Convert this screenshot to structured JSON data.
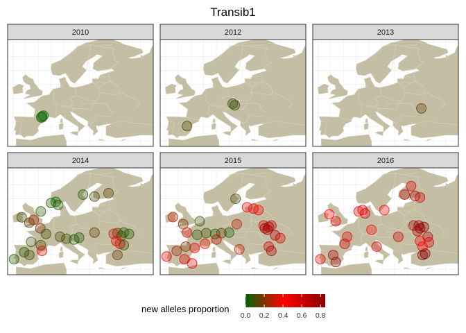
{
  "title": "Transib1",
  "chart_data": {
    "type": "scatter",
    "title": "Transib1",
    "description_axes": "longitude / latitude map of Europe, faceted by year",
    "xlim": [
      -12,
      45
    ],
    "ylim": [
      33,
      71
    ],
    "grid": true,
    "facets": [
      {
        "label": "2010",
        "points": [
          {
            "lon": 1.5,
            "lat": 43.6,
            "value": 0.0
          },
          {
            "lon": 2.0,
            "lat": 43.9,
            "value": 0.0
          },
          {
            "lon": 1.2,
            "lat": 43.3,
            "value": 0.02
          }
        ]
      },
      {
        "label": "2012",
        "points": [
          {
            "lon": 16.4,
            "lat": 48.2,
            "value": 0.1
          },
          {
            "lon": 17.2,
            "lat": 47.6,
            "value": 0.08
          },
          {
            "lon": -1.5,
            "lat": 40.2,
            "value": 0.1
          }
        ]
      },
      {
        "label": "2013",
        "points": [
          {
            "lon": 30.5,
            "lat": 46.5,
            "value": 0.15
          }
        ]
      },
      {
        "label": "2014",
        "points": [
          {
            "lon": -6.5,
            "lat": 53.4,
            "value": 0.1
          },
          {
            "lon": -3.5,
            "lat": 51.5,
            "value": 0.15
          },
          {
            "lon": -1.8,
            "lat": 52.5,
            "value": 0.25
          },
          {
            "lon": 1.0,
            "lat": 55.5,
            "value": 0.05
          },
          {
            "lon": 5.0,
            "lat": 58.5,
            "value": 0.05
          },
          {
            "lon": 6.8,
            "lat": 58.9,
            "value": 0.0
          },
          {
            "lon": 7.8,
            "lat": 57.8,
            "value": 0.05
          },
          {
            "lon": 17.5,
            "lat": 61.5,
            "value": 0.05
          },
          {
            "lon": 22.0,
            "lat": 60.8,
            "value": 0.1
          },
          {
            "lon": 27.5,
            "lat": 62.0,
            "value": 0.15
          },
          {
            "lon": 0.8,
            "lat": 49.5,
            "value": 0.2
          },
          {
            "lon": 3.0,
            "lat": 47.5,
            "value": 0.1
          },
          {
            "lon": 1.0,
            "lat": 43.5,
            "value": 0.1
          },
          {
            "lon": -2.8,
            "lat": 44.7,
            "value": 0.1
          },
          {
            "lon": -5.5,
            "lat": 41.0,
            "value": 0.05
          },
          {
            "lon": -3.5,
            "lat": 40.0,
            "value": 0.1
          },
          {
            "lon": 1.5,
            "lat": 41.5,
            "value": 0.35
          },
          {
            "lon": -9.5,
            "lat": 38.5,
            "value": 0.05
          },
          {
            "lon": 8.5,
            "lat": 46.5,
            "value": 0.1
          },
          {
            "lon": 11.0,
            "lat": 45.8,
            "value": 0.1
          },
          {
            "lon": 14.0,
            "lat": 45.5,
            "value": 0.05
          },
          {
            "lon": 16.0,
            "lat": 46.2,
            "value": 0.05
          },
          {
            "lon": 22.0,
            "lat": 48.0,
            "value": 0.15
          },
          {
            "lon": 29.5,
            "lat": 47.5,
            "value": 0.3
          },
          {
            "lon": 31.0,
            "lat": 47.8,
            "value": 0.2
          },
          {
            "lon": 32.5,
            "lat": 46.8,
            "value": 0.1
          },
          {
            "lon": 33.5,
            "lat": 48.0,
            "value": 0.05
          },
          {
            "lon": 35.5,
            "lat": 47.5,
            "value": 0.05
          },
          {
            "lon": 30.5,
            "lat": 45.0,
            "value": 0.35
          },
          {
            "lon": 32.0,
            "lat": 44.0,
            "value": 0.5
          },
          {
            "lon": 33.5,
            "lat": 43.5,
            "value": 0.1
          },
          {
            "lon": 31.0,
            "lat": 40.0,
            "value": 0.15
          }
        ]
      },
      {
        "label": "2015",
        "points": [
          {
            "lon": -7.0,
            "lat": 53.5,
            "value": 0.3
          },
          {
            "lon": -3.0,
            "lat": 51.0,
            "value": 0.2
          },
          {
            "lon": 3.5,
            "lat": 52.0,
            "value": 0.1
          },
          {
            "lon": -1.5,
            "lat": 48.0,
            "value": 0.35
          },
          {
            "lon": 2.5,
            "lat": 47.2,
            "value": 0.05
          },
          {
            "lon": 6.0,
            "lat": 47.8,
            "value": 0.1
          },
          {
            "lon": 9.5,
            "lat": 47.5,
            "value": 0.05
          },
          {
            "lon": 12.0,
            "lat": 47.8,
            "value": 0.15
          },
          {
            "lon": 15.0,
            "lat": 48.0,
            "value": 0.05
          },
          {
            "lon": 18.0,
            "lat": 51.0,
            "value": 0.3
          },
          {
            "lon": 17.5,
            "lat": 60.0,
            "value": 0.1
          },
          {
            "lon": 22.0,
            "lat": 57.0,
            "value": 0.45
          },
          {
            "lon": 24.5,
            "lat": 56.5,
            "value": 0.5
          },
          {
            "lon": 26.5,
            "lat": 56.0,
            "value": 0.4
          },
          {
            "lon": 28.5,
            "lat": 50.5,
            "value": 0.6
          },
          {
            "lon": 29.0,
            "lat": 49.5,
            "value": 0.7
          },
          {
            "lon": 30.5,
            "lat": 50.0,
            "value": 0.8
          },
          {
            "lon": 30.0,
            "lat": 49.0,
            "value": 0.75
          },
          {
            "lon": 31.5,
            "lat": 50.5,
            "value": 0.65
          },
          {
            "lon": 33.0,
            "lat": 47.0,
            "value": 0.7
          },
          {
            "lon": 35.0,
            "lat": 46.0,
            "value": 0.55
          },
          {
            "lon": 30.5,
            "lat": 43.0,
            "value": 0.6
          },
          {
            "lon": 31.5,
            "lat": 41.5,
            "value": 0.7
          },
          {
            "lon": 10.0,
            "lat": 45.5,
            "value": 0.3
          },
          {
            "lon": 5.5,
            "lat": 44.0,
            "value": 0.35
          },
          {
            "lon": 1.5,
            "lat": 42.5,
            "value": 0.45
          },
          {
            "lon": -2.0,
            "lat": 43.0,
            "value": 0.2
          },
          {
            "lon": -5.5,
            "lat": 41.5,
            "value": 0.25
          },
          {
            "lon": -9.5,
            "lat": 39.5,
            "value": 0.45
          },
          {
            "lon": -2.5,
            "lat": 38.5,
            "value": 0.5
          },
          {
            "lon": 0.5,
            "lat": 37.0,
            "value": 0.55
          },
          {
            "lon": 19.0,
            "lat": 42.0,
            "value": 0.3
          }
        ]
      },
      {
        "label": "2016",
        "points": [
          {
            "lon": -5.5,
            "lat": 54.5,
            "value": 0.4
          },
          {
            "lon": -3.0,
            "lat": 52.0,
            "value": 0.45
          },
          {
            "lon": 6.0,
            "lat": 55.5,
            "value": 0.5
          },
          {
            "lon": 7.5,
            "lat": 56.0,
            "value": 0.5
          },
          {
            "lon": 8.5,
            "lat": 54.8,
            "value": 0.55
          },
          {
            "lon": 26.5,
            "lat": 64.5,
            "value": 0.55
          },
          {
            "lon": 24.0,
            "lat": 61.5,
            "value": 0.7
          },
          {
            "lon": 28.0,
            "lat": 61.0,
            "value": 0.75
          },
          {
            "lon": 30.0,
            "lat": 60.5,
            "value": 0.6
          },
          {
            "lon": 16.0,
            "lat": 56.0,
            "value": 0.45
          },
          {
            "lon": 27.5,
            "lat": 50.5,
            "value": 0.75
          },
          {
            "lon": 29.5,
            "lat": 50.5,
            "value": 0.8
          },
          {
            "lon": 30.0,
            "lat": 49.5,
            "value": 0.85
          },
          {
            "lon": 31.5,
            "lat": 50.0,
            "value": 0.85
          },
          {
            "lon": 29.0,
            "lat": 48.5,
            "value": 0.7
          },
          {
            "lon": 33.0,
            "lat": 46.5,
            "value": 0.65
          },
          {
            "lon": 30.0,
            "lat": 45.0,
            "value": 0.45
          },
          {
            "lon": 33.5,
            "lat": 44.5,
            "value": 0.5
          },
          {
            "lon": 31.0,
            "lat": 43.0,
            "value": 0.4
          },
          {
            "lon": 21.5,
            "lat": 46.5,
            "value": 0.6
          },
          {
            "lon": 11.0,
            "lat": 49.0,
            "value": 0.4
          },
          {
            "lon": 0.5,
            "lat": 44.0,
            "value": 0.6
          },
          {
            "lon": 1.5,
            "lat": 46.5,
            "value": 0.5
          },
          {
            "lon": 13.0,
            "lat": 43.0,
            "value": 0.5
          },
          {
            "lon": -9.0,
            "lat": 38.5,
            "value": 0.45
          },
          {
            "lon": -4.0,
            "lat": 40.0,
            "value": 0.7
          },
          {
            "lon": -3.0,
            "lat": 37.5,
            "value": 0.8
          },
          {
            "lon": 31.0,
            "lat": 40.0,
            "value": 0.9
          },
          {
            "lon": 32.0,
            "lat": 40.5,
            "value": 0.85
          }
        ]
      }
    ],
    "color_scale": {
      "title": "new alleles proportion",
      "min": 0.0,
      "max": 0.85,
      "stops": [
        {
          "value": 0.0,
          "color": "#006400"
        },
        {
          "value": 0.4,
          "color": "#ff0000"
        },
        {
          "value": 0.85,
          "color": "#8b0000"
        }
      ],
      "ticks": [
        "0.0",
        "0.2",
        "0.4",
        "0.6",
        "0.8"
      ]
    }
  },
  "colors": {
    "land": "#c4bea4",
    "land_border": "#d9d4c0",
    "strip_fill": "#d9d9d9",
    "strip_border": "#333333",
    "grid": "#ebebeb"
  }
}
